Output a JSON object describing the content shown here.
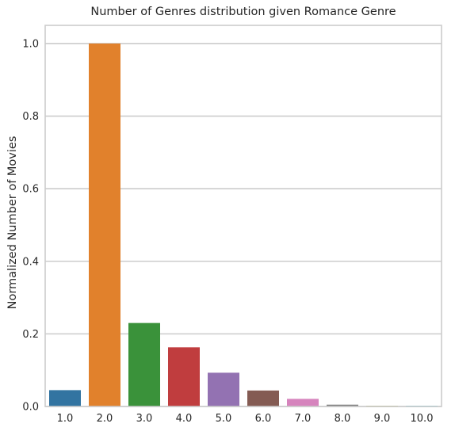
{
  "chart_data": {
    "type": "bar",
    "title": "Number of Genres distribution given Romance Genre",
    "xlabel": "",
    "ylabel": "Normalized Number of Movies",
    "categories": [
      "1.0",
      "2.0",
      "3.0",
      "4.0",
      "5.0",
      "6.0",
      "7.0",
      "8.0",
      "9.0",
      "10.0"
    ],
    "values": [
      0.045,
      1.0,
      0.23,
      0.163,
      0.093,
      0.044,
      0.021,
      0.005,
      0.002,
      0.002
    ],
    "colors": [
      "#3274a1",
      "#e1812c",
      "#3a923a",
      "#c03d3e",
      "#9372b2",
      "#845b53",
      "#d684bd",
      "#7f7f7f",
      "#a9aa35",
      "#3ebcd2"
    ],
    "ylim": [
      0,
      1.05
    ],
    "yticks": [
      0.0,
      0.2,
      0.4,
      0.6,
      0.8,
      1.0
    ],
    "ytick_labels": [
      "0.0",
      "0.2",
      "0.4",
      "0.6",
      "0.8",
      "1.0"
    ],
    "grid": true,
    "legend": "none"
  }
}
